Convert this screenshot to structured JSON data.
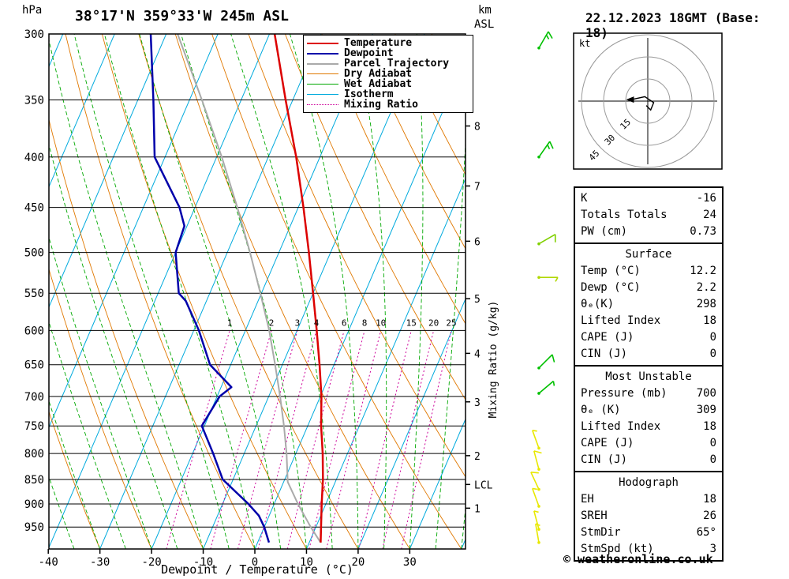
{
  "header": {
    "station_title": "38°17'N 359°33'W 245m ASL",
    "run_title": "22.12.2023 18GMT (Base: 18)"
  },
  "axes": {
    "pressure_unit": "hPa",
    "km_unit_line1": "km",
    "km_unit_line2": "ASL",
    "x_label": "Dewpoint / Temperature (°C)",
    "mixing_ratio_label": "Mixing Ratio (g/kg)",
    "lcl_label": "LCL",
    "pressure_ticks": [
      300,
      350,
      400,
      450,
      500,
      550,
      600,
      650,
      700,
      750,
      800,
      850,
      900,
      950
    ],
    "temp_ticks": [
      -40,
      -30,
      -20,
      -10,
      0,
      10,
      20,
      30
    ],
    "km_ticks": [
      1,
      2,
      3,
      4,
      5,
      6,
      7,
      8
    ]
  },
  "legend": [
    {
      "label": "Temperature",
      "color": "#dc0000",
      "dash": "solid",
      "thick": true
    },
    {
      "label": "Dewpoint",
      "color": "#0000aa",
      "dash": "solid",
      "thick": true
    },
    {
      "label": "Parcel Trajectory",
      "color": "#aaaaaa",
      "dash": "solid",
      "thick": true
    },
    {
      "label": "Dry Adiabat",
      "color": "#e07800",
      "dash": "solid",
      "thick": false
    },
    {
      "label": "Wet Adiabat",
      "color": "#00a800",
      "dash": "solid",
      "thick": false
    },
    {
      "label": "Isotherm",
      "color": "#00aadd",
      "dash": "solid",
      "thick": false
    },
    {
      "label": "Mixing Ratio",
      "color": "#cc0099",
      "dash": "dotted",
      "thick": false
    }
  ],
  "chart_data": {
    "type": "line",
    "projection": "skew-T log-P",
    "title": "38°17'N 359°33'W 245m ASL",
    "xlabel": "Dewpoint / Temperature (°C)",
    "ylabel": "hPa",
    "x_range_c": [
      -40,
      40
    ],
    "y_range_hpa": [
      300,
      1000
    ],
    "y_scale": "log",
    "series": [
      {
        "name": "Parcel Trajectory",
        "color": "#aaaaaa",
        "points": [
          [
            985,
            12.2
          ],
          [
            950,
            9.0
          ],
          [
            900,
            4.6
          ],
          [
            855,
            0.8
          ],
          [
            800,
            -1.8
          ],
          [
            750,
            -4.6
          ],
          [
            700,
            -7.8
          ],
          [
            650,
            -11.4
          ],
          [
            600,
            -15.4
          ],
          [
            550,
            -20.2
          ],
          [
            500,
            -25.6
          ],
          [
            450,
            -31.8
          ],
          [
            400,
            -39.0
          ],
          [
            350,
            -47.6
          ],
          [
            300,
            -57.8
          ]
        ]
      },
      {
        "name": "Dewpoint",
        "color": "#0000aa",
        "points": [
          [
            985,
            2.2
          ],
          [
            950,
            0.0
          ],
          [
            925,
            -2.0
          ],
          [
            900,
            -5.0
          ],
          [
            850,
            -12.0
          ],
          [
            800,
            -16.0
          ],
          [
            750,
            -20.5
          ],
          [
            700,
            -19.5
          ],
          [
            685,
            -18.0
          ],
          [
            650,
            -24.0
          ],
          [
            600,
            -29.0
          ],
          [
            560,
            -34.0
          ],
          [
            550,
            -36.0
          ],
          [
            500,
            -40.0
          ],
          [
            470,
            -40.5
          ],
          [
            450,
            -43.0
          ],
          [
            400,
            -52.0
          ],
          [
            350,
            -57.0
          ],
          [
            300,
            -63.0
          ]
        ]
      },
      {
        "name": "Temperature",
        "color": "#dc0000",
        "points": [
          [
            985,
            12.2
          ],
          [
            950,
            11.0
          ],
          [
            900,
            9.2
          ],
          [
            850,
            7.4
          ],
          [
            800,
            5.2
          ],
          [
            750,
            2.6
          ],
          [
            700,
            0.2
          ],
          [
            650,
            -2.8
          ],
          [
            600,
            -6.2
          ],
          [
            550,
            -10.0
          ],
          [
            500,
            -14.2
          ],
          [
            450,
            -19.0
          ],
          [
            400,
            -24.6
          ],
          [
            350,
            -31.4
          ],
          [
            300,
            -39.0
          ]
        ]
      }
    ],
    "background_lines": {
      "isotherms_c": {
        "color": "#00aadd",
        "from": -90,
        "to": 40,
        "step": 10
      },
      "dry_adiabats_c": {
        "color": "#e07800",
        "from": -30,
        "to": 120,
        "step": 10
      },
      "wet_adiabats_c": {
        "color": "#00a800",
        "from": -40,
        "to": 40,
        "step": 5
      },
      "mixing_ratio_gkg": {
        "color": "#cc0099",
        "values": [
          1,
          2,
          3,
          4,
          6,
          8,
          10,
          15,
          20,
          25
        ]
      }
    },
    "km_asl_ticks": [
      {
        "km": 1,
        "hpa": 909
      },
      {
        "km": 2,
        "hpa": 804
      },
      {
        "km": 3,
        "hpa": 709
      },
      {
        "km": 4,
        "hpa": 633
      },
      {
        "km": 5,
        "hpa": 557
      },
      {
        "km": 6,
        "hpa": 487
      },
      {
        "km": 7,
        "hpa": 428
      },
      {
        "km": 8,
        "hpa": 372
      }
    ],
    "lcl_hpa": 860
  },
  "wind_barbs": [
    {
      "p": 310,
      "color": "#00c000",
      "dir": 30,
      "spd": 15
    },
    {
      "p": 400,
      "color": "#00c000",
      "dir": 35,
      "spd": 15
    },
    {
      "p": 490,
      "color": "#80d000",
      "dir": 60,
      "spd": 10
    },
    {
      "p": 530,
      "color": "#b0d800",
      "dir": 90,
      "spd": 5
    },
    {
      "p": 655,
      "color": "#00c000",
      "dir": 45,
      "spd": 10
    },
    {
      "p": 695,
      "color": "#00c000",
      "dir": 50,
      "spd": 5
    },
    {
      "p": 790,
      "color": "#e8e800",
      "dir": 340,
      "spd": 5
    },
    {
      "p": 830,
      "color": "#e8e800",
      "dir": 345,
      "spd": 10
    },
    {
      "p": 870,
      "color": "#e8e800",
      "dir": 335,
      "spd": 10
    },
    {
      "p": 905,
      "color": "#e8e800",
      "dir": 340,
      "spd": 5
    },
    {
      "p": 955,
      "color": "#e8e800",
      "dir": 345,
      "spd": 5
    },
    {
      "p": 985,
      "color": "#e8e800",
      "dir": 350,
      "spd": 5
    }
  ],
  "hodograph": {
    "unit_label": "kt",
    "rings_kt": [
      15,
      30,
      45
    ],
    "trace_kt": [
      [
        -11,
        1
      ],
      [
        -2,
        3
      ],
      [
        4,
        -1
      ],
      [
        2,
        -6
      ],
      [
        -1,
        -3
      ]
    ]
  },
  "tables": [
    {
      "header": null,
      "rows": [
        [
          "K",
          "-16"
        ],
        [
          "Totals Totals",
          "24"
        ],
        [
          "PW (cm)",
          "0.73"
        ]
      ]
    },
    {
      "header": "Surface",
      "rows": [
        [
          "Temp (°C)",
          "12.2"
        ],
        [
          "Dewp (°C)",
          "2.2"
        ],
        [
          "θₑ(K)",
          "298"
        ],
        [
          "Lifted Index",
          "18"
        ],
        [
          "CAPE (J)",
          "0"
        ],
        [
          "CIN (J)",
          "0"
        ]
      ]
    },
    {
      "header": "Most Unstable",
      "rows": [
        [
          "Pressure (mb)",
          "700"
        ],
        [
          "θₑ (K)",
          "309"
        ],
        [
          "Lifted Index",
          "18"
        ],
        [
          "CAPE (J)",
          "0"
        ],
        [
          "CIN (J)",
          "0"
        ]
      ]
    },
    {
      "header": "Hodograph",
      "rows": [
        [
          "EH",
          "18"
        ],
        [
          "SREH",
          "26"
        ],
        [
          "StmDir",
          "65°"
        ],
        [
          "StmSpd (kt)",
          "3"
        ]
      ]
    }
  ],
  "footer": {
    "copyright": "© weatheronline.co.uk"
  }
}
